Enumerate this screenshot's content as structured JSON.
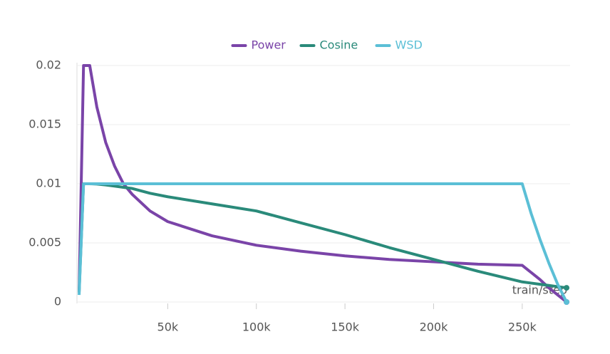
{
  "chart_data": {
    "type": "line",
    "x": [
      0,
      2500,
      6000,
      10000,
      15000,
      20000,
      25000,
      30000,
      40000,
      50000,
      75000,
      100000,
      125000,
      150000,
      175000,
      200000,
      225000,
      250000,
      255000,
      260000,
      265000,
      270000,
      275000
    ],
    "series": [
      {
        "name": "Power",
        "color": "#7a44a8",
        "values": [
          0.0008,
          0.02,
          0.02,
          0.0165,
          0.0135,
          0.0115,
          0.01,
          0.0091,
          0.0077,
          0.0068,
          0.0056,
          0.0048,
          0.0043,
          0.0039,
          0.0036,
          0.0034,
          0.0032,
          0.0031,
          0.0025,
          0.0019,
          0.0012,
          0.0006,
          0
        ]
      },
      {
        "name": "Cosine",
        "color": "#2a8a7a",
        "values": [
          0.0008,
          0.01,
          0.01,
          0.00998,
          0.0099,
          0.0098,
          0.0097,
          0.0096,
          0.0092,
          0.0089,
          0.0083,
          0.0077,
          0.0067,
          0.0057,
          0.0046,
          0.0036,
          0.0026,
          0.0017,
          0.0016,
          0.0015,
          0.0014,
          0.0013,
          0.0012
        ]
      },
      {
        "name": "WSD",
        "color": "#5bbfd6",
        "values": [
          0.0006,
          0.01,
          0.01,
          0.01,
          0.01,
          0.01,
          0.01,
          0.01,
          0.01,
          0.01,
          0.01,
          0.01,
          0.01,
          0.01,
          0.01,
          0.01,
          0.01,
          0.01,
          0.0075,
          0.0053,
          0.0033,
          0.0015,
          0
        ]
      }
    ],
    "x_label": "train/step",
    "xlim": [
      0,
      277000
    ],
    "ylim": [
      0,
      0.02
    ],
    "xticks": [
      {
        "value": 50000,
        "label": "50k"
      },
      {
        "value": 100000,
        "label": "100k"
      },
      {
        "value": 150000,
        "label": "150k"
      },
      {
        "value": 200000,
        "label": "200k"
      },
      {
        "value": 250000,
        "label": "250k"
      }
    ],
    "yticks": [
      0,
      0.005,
      0.01,
      0.015,
      0.02
    ],
    "grid": true,
    "legend": "top"
  }
}
